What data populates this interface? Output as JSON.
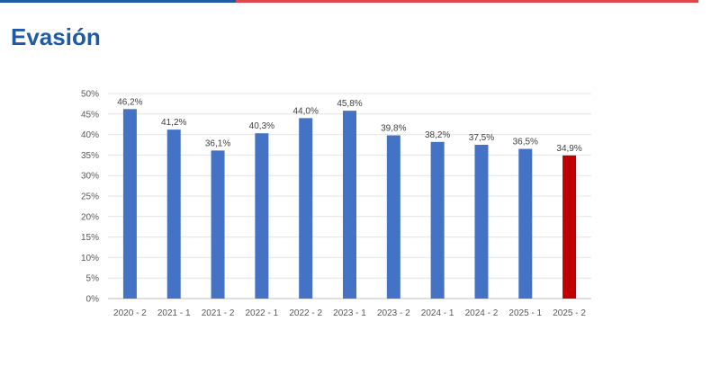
{
  "page": {
    "title": "Evasión",
    "title_color": "#1f5aa6",
    "accent_blue": "#1f5aa6",
    "accent_red": "#e0474c"
  },
  "chart_data": {
    "type": "bar",
    "title": "",
    "xlabel": "",
    "ylabel": "",
    "categories": [
      "2020 - 2",
      "2021 - 1",
      "2021 - 2",
      "2022 - 1",
      "2022 - 2",
      "2023 - 1",
      "2023 - 2",
      "2024 - 1",
      "2024 - 2",
      "2025 - 1",
      "2025 - 2"
    ],
    "values": [
      46.2,
      41.2,
      36.1,
      40.3,
      44.0,
      45.8,
      39.8,
      38.2,
      37.5,
      36.5,
      34.9
    ],
    "data_labels": [
      "46,2%",
      "41,2%",
      "36,1%",
      "40,3%",
      "44,0%",
      "45,8%",
      "39,8%",
      "38,2%",
      "37,5%",
      "36,5%",
      "34,9%"
    ],
    "y_ticks": [
      0,
      5,
      10,
      15,
      20,
      25,
      30,
      35,
      40,
      45,
      50
    ],
    "y_tick_labels": [
      "0%",
      "5%",
      "10%",
      "15%",
      "20%",
      "25%",
      "30%",
      "35%",
      "40%",
      "45%",
      "50%"
    ],
    "ylim": [
      0,
      50
    ],
    "grid": true,
    "legend": "none",
    "bar_color": "#4472c4",
    "highlight_color": "#c00000",
    "highlight_category": "2025 - 2"
  }
}
